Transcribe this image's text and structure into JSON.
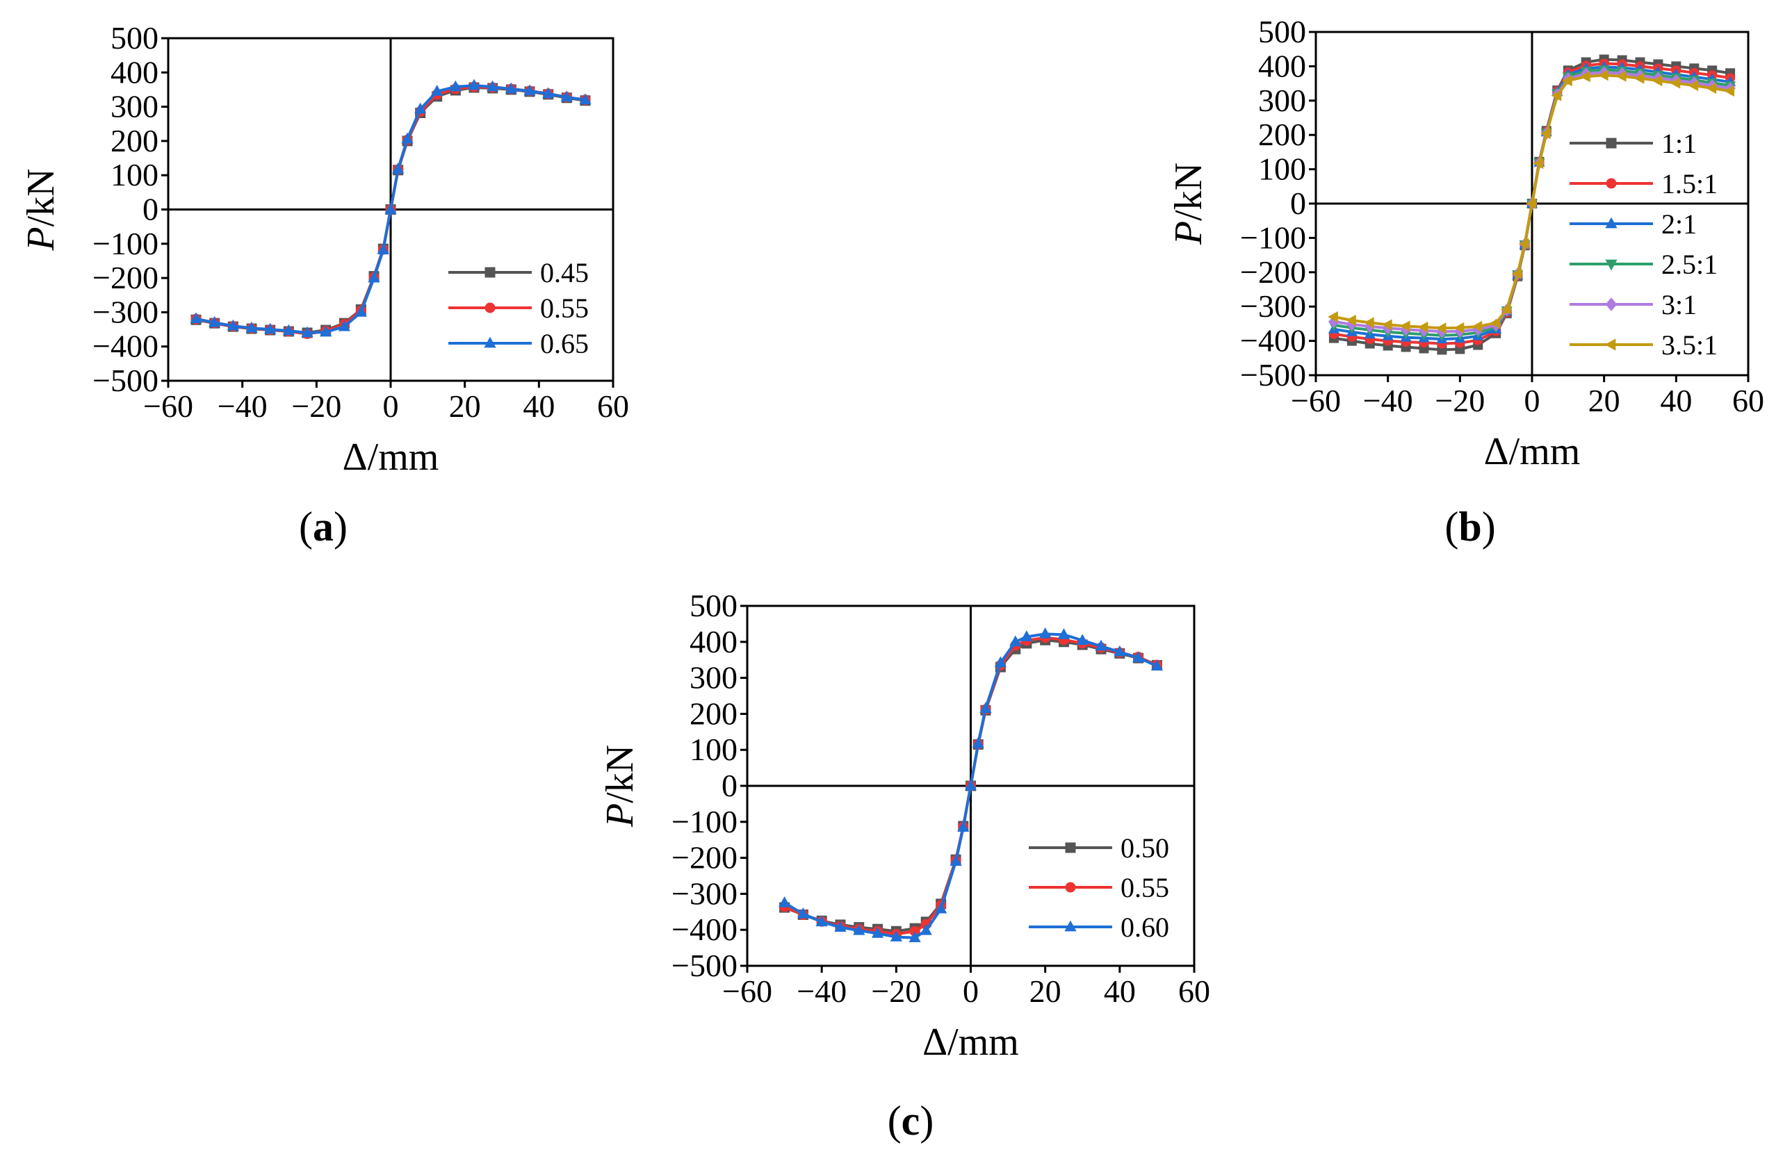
{
  "chart_data": [
    {
      "type": "line",
      "panel": "a",
      "caption": "(a)",
      "caption_parts": {
        "open": "(",
        "letter": "a",
        "close": ")"
      },
      "xlabel": "Δ/mm",
      "ylabel_italic": "P",
      "ylabel_unit": "/kN",
      "xlim": [
        -60,
        60
      ],
      "ylim": [
        -500,
        500
      ],
      "xticks": [
        -60,
        -40,
        -20,
        0,
        20,
        40,
        60
      ],
      "yticks": [
        -500,
        -400,
        -300,
        -200,
        -100,
        0,
        100,
        200,
        300,
        400,
        500
      ],
      "legend_position": "bottom-right",
      "x": [
        -52.5,
        -47.5,
        -42.5,
        -37.5,
        -32.5,
        -27.5,
        -22.5,
        -17.5,
        -12.5,
        -8,
        -4.5,
        -2,
        0,
        2,
        4.5,
        8,
        12.5,
        17.5,
        22.5,
        27.5,
        32.5,
        37.5,
        42.5,
        47.5,
        52.5
      ],
      "series": [
        {
          "name": "0.45",
          "color": "#555555",
          "marker": "square",
          "values": [
            -322,
            -332,
            -342,
            -348,
            -352,
            -356,
            -360,
            -352,
            -332,
            -292,
            -195,
            -115,
            0,
            115,
            200,
            282,
            330,
            348,
            356,
            354,
            350,
            344,
            336,
            326,
            318
          ]
        },
        {
          "name": "0.55",
          "color": "#ee3333",
          "marker": "circle",
          "values": [
            -320,
            -331,
            -341,
            -347,
            -351,
            -356,
            -363,
            -355,
            -335,
            -295,
            -198,
            -117,
            0,
            117,
            203,
            286,
            336,
            352,
            358,
            356,
            352,
            346,
            338,
            328,
            320
          ]
        },
        {
          "name": "0.65",
          "color": "#1f6fd6",
          "marker": "triangle",
          "values": [
            -319,
            -330,
            -340,
            -346,
            -350,
            -354,
            -360,
            -358,
            -342,
            -300,
            -200,
            -118,
            0,
            118,
            206,
            293,
            345,
            358,
            362,
            358,
            352,
            346,
            338,
            328,
            320
          ]
        }
      ]
    },
    {
      "type": "line",
      "panel": "b",
      "caption": "(b)",
      "caption_parts": {
        "open": "(",
        "letter": "b",
        "close": ")"
      },
      "xlabel": "Δ/mm",
      "ylabel_italic": "P",
      "ylabel_unit": "/kN",
      "xlim": [
        -60,
        60
      ],
      "ylim": [
        -500,
        500
      ],
      "xticks": [
        -60,
        -40,
        -20,
        0,
        20,
        40,
        60
      ],
      "yticks": [
        -500,
        -400,
        -300,
        -200,
        -100,
        0,
        100,
        200,
        300,
        400,
        500
      ],
      "legend_position": "right",
      "x": [
        -55,
        -50,
        -45,
        -40,
        -35,
        -30,
        -25,
        -20,
        -15,
        -10,
        -7,
        -4,
        -2,
        0,
        2,
        4,
        7,
        10,
        15,
        20,
        25,
        30,
        35,
        40,
        45,
        50,
        55
      ],
      "series": [
        {
          "name": "1:1",
          "color": "#555555",
          "marker": "square",
          "values": [
            -392,
            -400,
            -408,
            -414,
            -418,
            -422,
            -426,
            -424,
            -412,
            -378,
            -320,
            -212,
            -122,
            0,
            122,
            212,
            330,
            388,
            412,
            420,
            418,
            412,
            406,
            400,
            394,
            388,
            380
          ]
        },
        {
          "name": "1.5:1",
          "color": "#ee3333",
          "marker": "circle",
          "values": [
            -380,
            -388,
            -395,
            -400,
            -403,
            -405,
            -408,
            -406,
            -398,
            -372,
            -318,
            -210,
            -121,
            0,
            121,
            210,
            328,
            382,
            402,
            408,
            406,
            400,
            394,
            388,
            381,
            374,
            366
          ]
        },
        {
          "name": "2:1",
          "color": "#1f6fd6",
          "marker": "triangle",
          "values": [
            -366,
            -374,
            -381,
            -386,
            -390,
            -392,
            -395,
            -393,
            -386,
            -366,
            -314,
            -208,
            -120,
            0,
            120,
            208,
            325,
            376,
            394,
            398,
            396,
            390,
            383,
            376,
            369,
            362,
            354
          ]
        },
        {
          "name": "2.5:1",
          "color": "#2e9e6b",
          "marker": "triangle-down",
          "values": [
            -354,
            -362,
            -368,
            -374,
            -378,
            -381,
            -384,
            -382,
            -376,
            -360,
            -312,
            -206,
            -119,
            0,
            119,
            206,
            322,
            370,
            386,
            390,
            387,
            381,
            374,
            367,
            360,
            352,
            344
          ]
        },
        {
          "name": "3:1",
          "color": "#b07be0",
          "marker": "diamond",
          "values": [
            -344,
            -352,
            -358,
            -363,
            -367,
            -370,
            -373,
            -372,
            -367,
            -354,
            -310,
            -205,
            -118,
            0,
            118,
            205,
            318,
            364,
            378,
            382,
            379,
            373,
            366,
            359,
            352,
            344,
            336
          ]
        },
        {
          "name": "3.5:1",
          "color": "#c49a10",
          "marker": "triangle-left",
          "values": [
            -330,
            -340,
            -347,
            -353,
            -357,
            -360,
            -363,
            -362,
            -358,
            -348,
            -308,
            -204,
            -117,
            0,
            117,
            204,
            315,
            358,
            370,
            374,
            371,
            365,
            358,
            351,
            344,
            336,
            328
          ]
        }
      ]
    },
    {
      "type": "line",
      "panel": "c",
      "caption": "(c)",
      "caption_parts": {
        "open": "(",
        "letter": "c",
        "close": ")"
      },
      "xlabel": "Δ/mm",
      "ylabel_italic": "P",
      "ylabel_unit": "/kN",
      "xlim": [
        -60,
        60
      ],
      "ylim": [
        -500,
        500
      ],
      "xticks": [
        -60,
        -40,
        -20,
        0,
        20,
        40,
        60
      ],
      "yticks": [
        -500,
        -400,
        -300,
        -200,
        -100,
        0,
        100,
        200,
        300,
        400,
        500
      ],
      "legend_position": "bottom-right",
      "x": [
        -50,
        -45,
        -40,
        -35,
        -30,
        -25,
        -20,
        -15,
        -12,
        -8,
        -4,
        -2,
        0,
        2,
        4,
        8,
        12,
        15,
        20,
        25,
        30,
        35,
        40,
        45,
        50
      ],
      "series": [
        {
          "name": "0.50",
          "color": "#555555",
          "marker": "square",
          "values": [
            -338,
            -358,
            -375,
            -386,
            -393,
            -398,
            -404,
            -396,
            -378,
            -328,
            -205,
            -112,
            0,
            115,
            210,
            330,
            380,
            396,
            405,
            400,
            392,
            380,
            368,
            355,
            335
          ]
        },
        {
          "name": "0.55",
          "color": "#ee3333",
          "marker": "circle",
          "values": [
            -336,
            -358,
            -377,
            -390,
            -398,
            -404,
            -412,
            -404,
            -385,
            -332,
            -207,
            -114,
            0,
            116,
            212,
            335,
            390,
            404,
            412,
            406,
            396,
            384,
            370,
            358,
            336
          ]
        },
        {
          "name": "0.60",
          "color": "#1f6fd6",
          "marker": "triangle",
          "values": [
            -325,
            -356,
            -378,
            -393,
            -402,
            -410,
            -420,
            -422,
            -402,
            -342,
            -210,
            -115,
            0,
            118,
            215,
            342,
            400,
            414,
            422,
            420,
            404,
            388,
            372,
            356,
            333
          ]
        }
      ]
    }
  ]
}
